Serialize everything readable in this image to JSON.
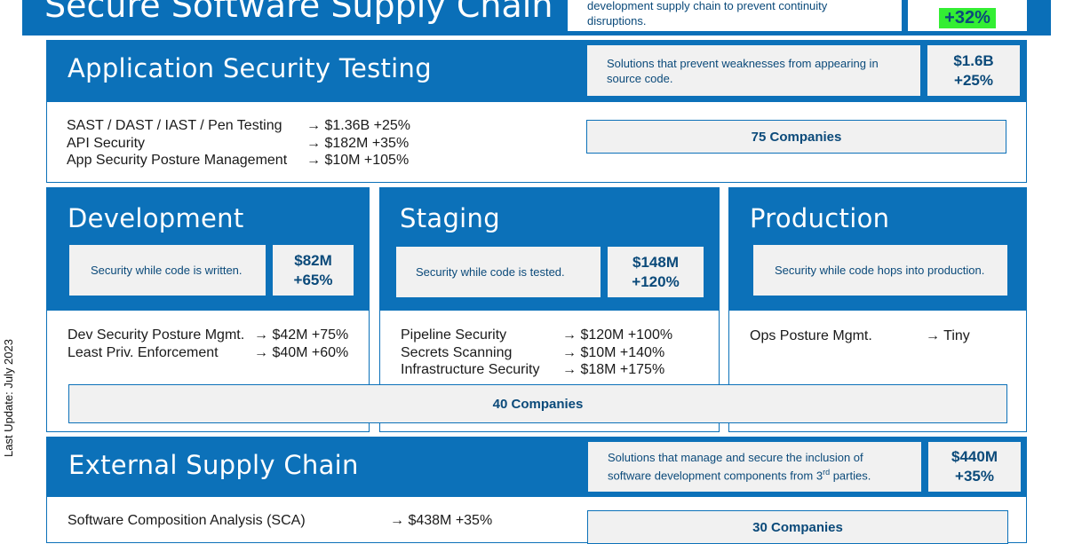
{
  "top": {
    "title": "Secure Software Supply Chain",
    "description": "development supply chain to prevent continuity disruptions.",
    "growth": "+32%",
    "growth_color": "#33ee33"
  },
  "side_label": "Last Update: July 2023",
  "ast": {
    "title": "Application Security Testing",
    "description": "Solutions that prevent weaknesses from appearing in source code.",
    "market_size": "$1.6B",
    "growth": "+25%",
    "items": [
      {
        "name": "SAST / DAST / IAST / Pen Testing",
        "value": "→ $1.36B +25%"
      },
      {
        "name": "API Security",
        "value": "→ $182M +35%"
      },
      {
        "name": "App Security Posture Management",
        "value": "→ $10M +105%"
      }
    ],
    "companies": "75 Companies"
  },
  "development": {
    "title": "Development",
    "description": "Security while code is written.",
    "market_size": "$82M",
    "growth": "+65%",
    "items": [
      {
        "name": "Dev Security Posture Mgmt.",
        "value": "→ $42M +75%"
      },
      {
        "name": "Least Priv. Enforcement",
        "value": "→ $40M +60%"
      }
    ]
  },
  "staging": {
    "title": "Staging",
    "description": "Security while code is tested.",
    "market_size": "$148M",
    "growth": "+120%",
    "items": [
      {
        "name": "Pipeline Security",
        "value": "→ $120M +100%"
      },
      {
        "name": "Secrets Scanning",
        "value": "→ $10M +140%"
      },
      {
        "name": "Infrastructure Security",
        "value": "→ $18M +175%"
      }
    ]
  },
  "production": {
    "title": "Production",
    "description": "Security while code hops into production.",
    "items": [
      {
        "name": "Ops Posture Mgmt.",
        "value": "→ Tiny"
      }
    ]
  },
  "middle_companies": "40 Companies",
  "external": {
    "title": "External Supply Chain",
    "description_main": "Solutions that manage and secure the inclusion of software development components from 3",
    "description_sup": "rd",
    "description_end": " parties.",
    "market_size": "$440M",
    "growth": "+35%",
    "items": [
      {
        "name": "Software Composition Analysis (SCA)",
        "value": "→ $438M +35%"
      }
    ],
    "companies": "30 Companies"
  }
}
